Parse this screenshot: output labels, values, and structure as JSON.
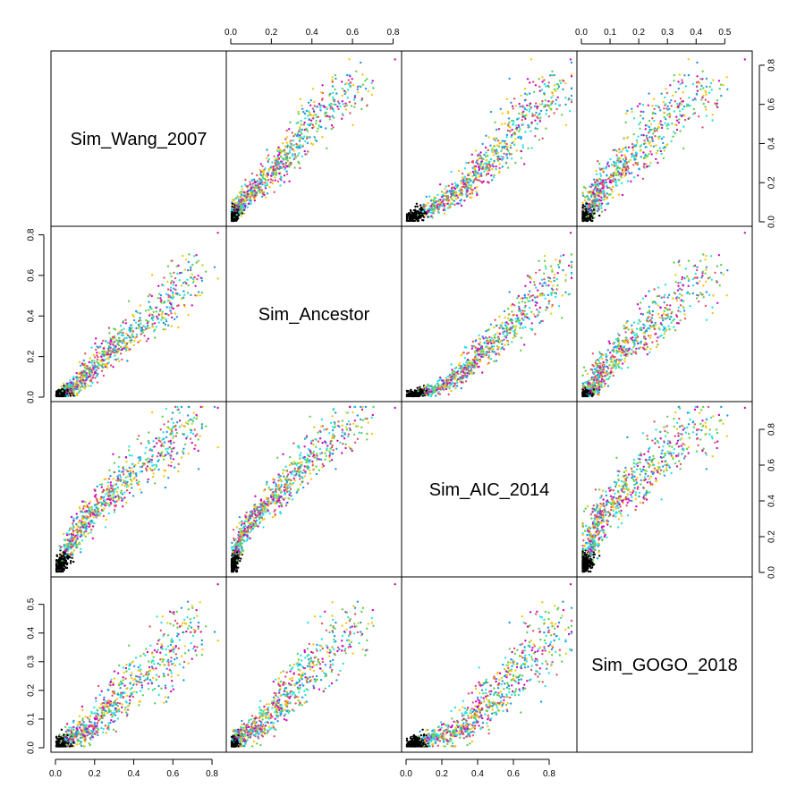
{
  "chart_data": {
    "type": "scatter-matrix",
    "title": "",
    "variables": [
      {
        "name": "Sim_Wang_2007",
        "range": [
          0,
          0.85
        ],
        "ticks": [
          0.0,
          0.2,
          0.4,
          0.6,
          0.8
        ],
        "tick_labels": [
          "0.0",
          "0.2",
          "0.4",
          "0.6",
          "0.8"
        ]
      },
      {
        "name": "Sim_Ancestor",
        "range": [
          0,
          0.82
        ],
        "ticks": [
          0.0,
          0.2,
          0.4,
          0.6,
          0.8
        ],
        "tick_labels": [
          "0.0",
          "0.2",
          "0.4",
          "0.6",
          "0.8"
        ]
      },
      {
        "name": "Sim_AIC_2014",
        "range": [
          0,
          0.93
        ],
        "ticks": [
          0.0,
          0.2,
          0.4,
          0.6,
          0.8
        ],
        "tick_labels": [
          "0.0",
          "0.2",
          "0.4",
          "0.6",
          "0.8"
        ]
      },
      {
        "name": "Sim_GOGO_2018",
        "range": [
          0,
          0.58
        ],
        "ticks": [
          0.0,
          0.1,
          0.2,
          0.3,
          0.4,
          0.5
        ],
        "tick_labels": [
          "0.0",
          "0.1",
          "0.2",
          "0.3",
          "0.4",
          "0.5"
        ]
      }
    ],
    "axes": {
      "top": [
        1,
        3
      ],
      "bottom": [
        0,
        2
      ],
      "left": [
        1,
        3
      ],
      "right": [
        0,
        2
      ]
    },
    "point_colors": [
      "#000000",
      "#DF536B",
      "#61D04F",
      "#2297E6",
      "#28E2E5",
      "#CD0BBC",
      "#F5C710",
      "#9E9E9E"
    ],
    "summary_points": [
      {
        "v": [
          0.02,
          0.01,
          0.03,
          0.01
        ],
        "color": "#000000"
      },
      {
        "v": [
          0.1,
          0.05,
          0.2,
          0.04
        ],
        "color": "#DF536B"
      },
      {
        "v": [
          0.2,
          0.15,
          0.35,
          0.08
        ],
        "color": "#2297E6"
      },
      {
        "v": [
          0.3,
          0.25,
          0.45,
          0.15
        ],
        "color": "#28E2E5"
      },
      {
        "v": [
          0.45,
          0.35,
          0.6,
          0.25
        ],
        "color": "#61D04F"
      },
      {
        "v": [
          0.6,
          0.5,
          0.75,
          0.35
        ],
        "color": "#F5C710"
      },
      {
        "v": [
          0.72,
          0.7,
          0.88,
          0.48
        ],
        "color": "#CD0BBC"
      },
      {
        "v": [
          0.83,
          0.81,
          0.92,
          0.57
        ],
        "color": "#CD0BBC"
      }
    ],
    "grid": false,
    "legend": "none"
  }
}
